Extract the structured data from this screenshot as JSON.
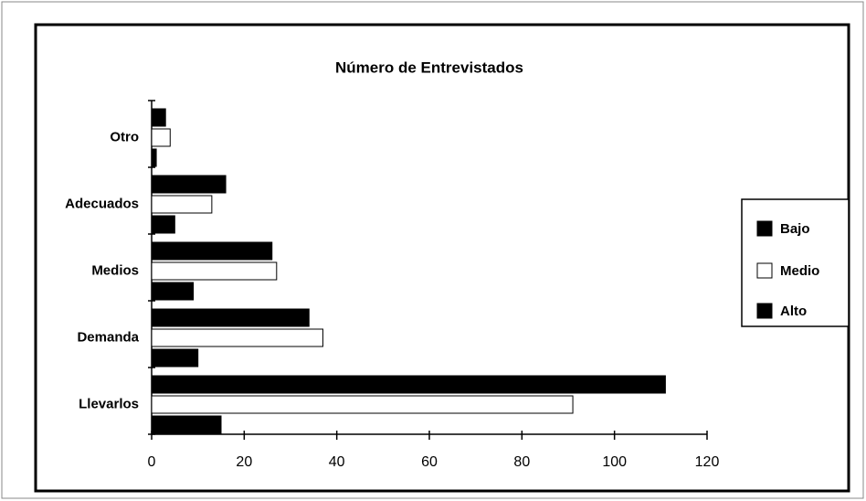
{
  "chart_data": {
    "type": "hbar",
    "title": "Número de Entrevistados",
    "categories": [
      "Otro",
      "Adecuados",
      "Medios",
      "Demanda",
      "Llevarlos"
    ],
    "series": [
      {
        "name": "Bajo",
        "color": "#000000",
        "values": [
          3,
          16,
          26,
          34,
          111
        ]
      },
      {
        "name": "Medio",
        "color": "#ffffff",
        "values": [
          4,
          13,
          27,
          37,
          91
        ]
      },
      {
        "name": "Alto",
        "color": "#000000",
        "values": [
          1,
          5,
          9,
          10,
          15
        ]
      }
    ],
    "xlim": [
      0,
      120
    ],
    "xticks": [
      0,
      20,
      40,
      60,
      80,
      100,
      120
    ],
    "legend": "right"
  }
}
